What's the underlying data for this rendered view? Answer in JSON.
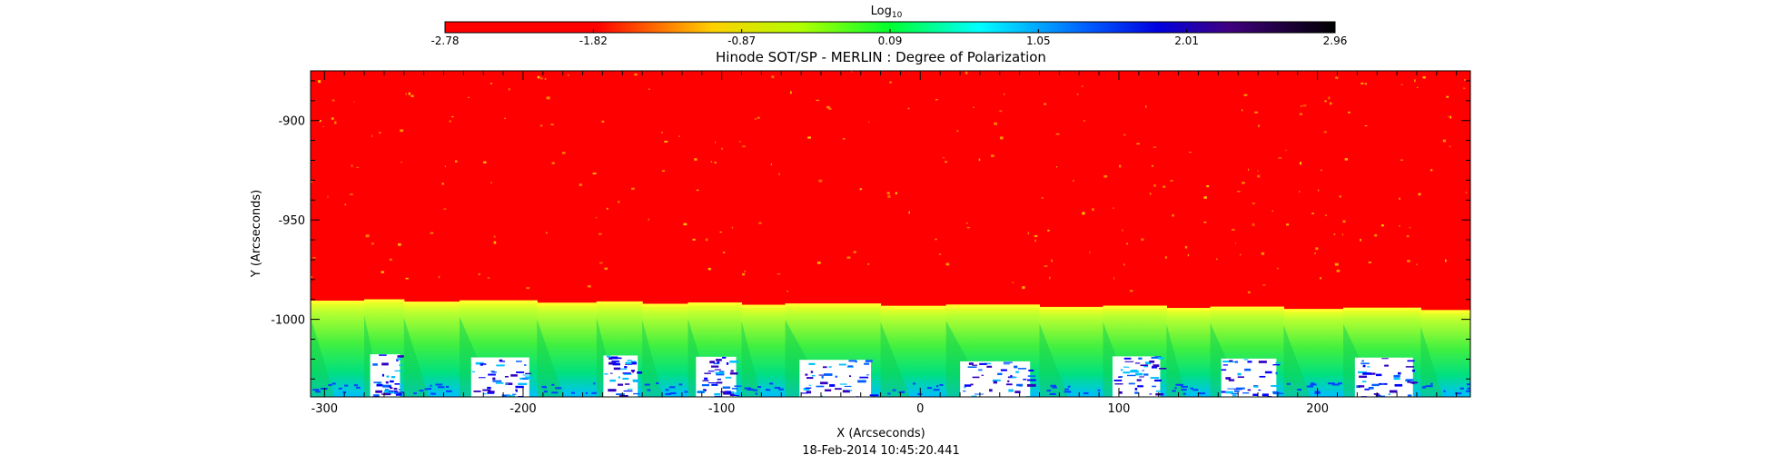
{
  "chart_data": {
    "type": "heatmap",
    "title": "Hinode SOT/SP - MERLIN : Degree of Polarization",
    "subtitle": "18-Feb-2014 10:45:20.441",
    "xlabel": "X (Arcseconds)",
    "ylabel": "Y (Arcseconds)",
    "xlim": [
      -307,
      277
    ],
    "ylim": [
      -1039,
      -875
    ],
    "x_ticks": [
      -300,
      -200,
      -100,
      0,
      100,
      200
    ],
    "x_tick_labels": [
      "-300",
      "-200",
      "-100",
      "0",
      "100",
      "200"
    ],
    "y_ticks": [
      -900,
      -950,
      -1000
    ],
    "y_tick_labels": [
      "-900",
      "-950",
      "-1000"
    ],
    "colorbar": {
      "label": "Log",
      "label_subscript": "10",
      "range": [
        -2.78,
        2.96
      ],
      "tick_labels": [
        "-2.78",
        "-1.82",
        "-0.87",
        "0.09",
        "1.05",
        "2.01",
        "2.96"
      ],
      "colors": [
        "#ff0000",
        "#ffff00",
        "#00ff00",
        "#00ffff",
        "#0000ff",
        "#800080",
        "#000000"
      ]
    },
    "limb": {
      "y_start": -990,
      "y_end": -995,
      "above_color": "#ff0000",
      "below_colors": [
        "#ffff00",
        "#a0ff20",
        "#00ff00",
        "#00ffff",
        "#0000ff",
        "#ffffff"
      ]
    },
    "grid": false,
    "scan_strip_boundaries_x": [
      -280,
      -260,
      -232,
      -193,
      -163,
      -140,
      -117,
      -90,
      -68,
      -20,
      13,
      60,
      92,
      124,
      146,
      183,
      213,
      252
    ]
  }
}
